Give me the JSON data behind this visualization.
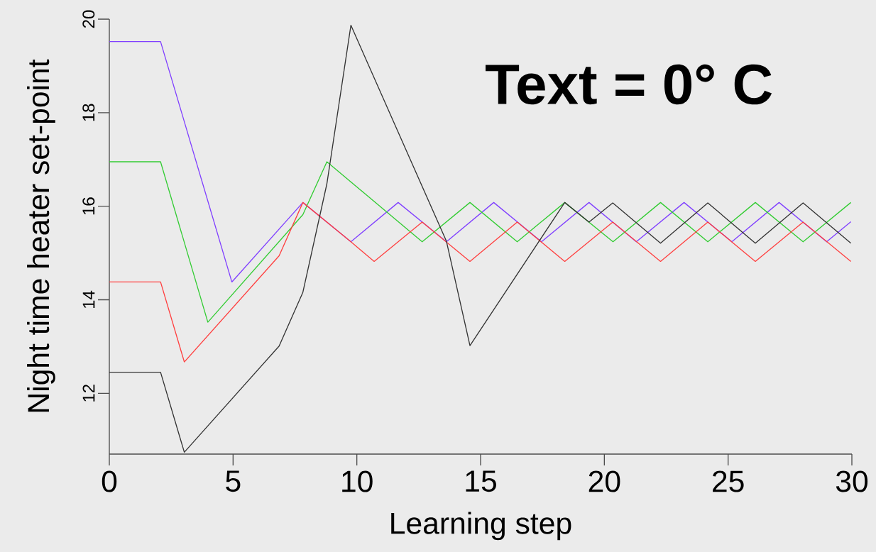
{
  "chart_data": {
    "type": "line",
    "annotations": [
      "Text = 0° C"
    ],
    "xlabel": "Learning step",
    "ylabel": "Night time heater set-point",
    "xlim": [
      0,
      30
    ],
    "xticks": [
      0,
      5,
      10,
      15,
      20,
      25,
      30
    ],
    "ylim": [
      10.7,
      20
    ],
    "yticks": [
      12,
      14,
      16,
      18,
      20
    ],
    "grid": false,
    "marker": "none",
    "line_style": "solid",
    "series": [
      {
        "color": "#8040ff",
        "x": [
          0,
          2.07,
          4.95,
          7.82,
          9.76,
          11.67,
          13.62,
          15.53,
          17.46,
          19.38,
          21.29,
          23.22,
          25.15,
          27.06,
          28.98,
          29.96
        ],
        "values": [
          19.52,
          19.52,
          14.38,
          16.08,
          15.24,
          16.08,
          15.24,
          16.08,
          15.24,
          16.08,
          15.24,
          16.08,
          15.24,
          16.08,
          15.24,
          15.67
        ]
      },
      {
        "color": "#33cc33",
        "x": [
          0,
          2.07,
          3.98,
          7.82,
          8.79,
          12.64,
          14.57,
          16.48,
          18.4,
          20.35,
          22.27,
          24.18,
          26.1,
          28.03,
          29.96
        ],
        "values": [
          16.95,
          16.95,
          13.52,
          15.82,
          16.95,
          15.24,
          16.08,
          15.24,
          16.08,
          15.24,
          16.08,
          15.24,
          16.08,
          15.24,
          16.08
        ]
      },
      {
        "color": "#ff4040",
        "x": [
          0,
          2.07,
          3.03,
          6.86,
          7.82,
          9.76,
          10.7,
          12.64,
          14.57,
          16.48,
          18.4,
          20.34,
          22.27,
          24.18,
          26.1,
          28.03,
          29.96
        ],
        "values": [
          14.38,
          14.38,
          12.67,
          14.94,
          16.08,
          15.24,
          14.82,
          15.66,
          14.82,
          15.66,
          14.82,
          15.66,
          14.82,
          15.66,
          14.82,
          15.66,
          14.82
        ]
      },
      {
        "color": "#333333",
        "x": [
          0,
          2.07,
          3.03,
          6.86,
          7.82,
          8.79,
          9.76,
          13.62,
          14.57,
          18.4,
          19.38,
          20.34,
          22.27,
          24.18,
          26.1,
          28.03,
          29.96
        ],
        "values": [
          12.45,
          12.45,
          10.74,
          13.01,
          14.16,
          16.48,
          19.87,
          15.25,
          13.02,
          16.08,
          15.66,
          16.07,
          15.21,
          16.07,
          15.21,
          16.07,
          15.21
        ]
      }
    ]
  }
}
